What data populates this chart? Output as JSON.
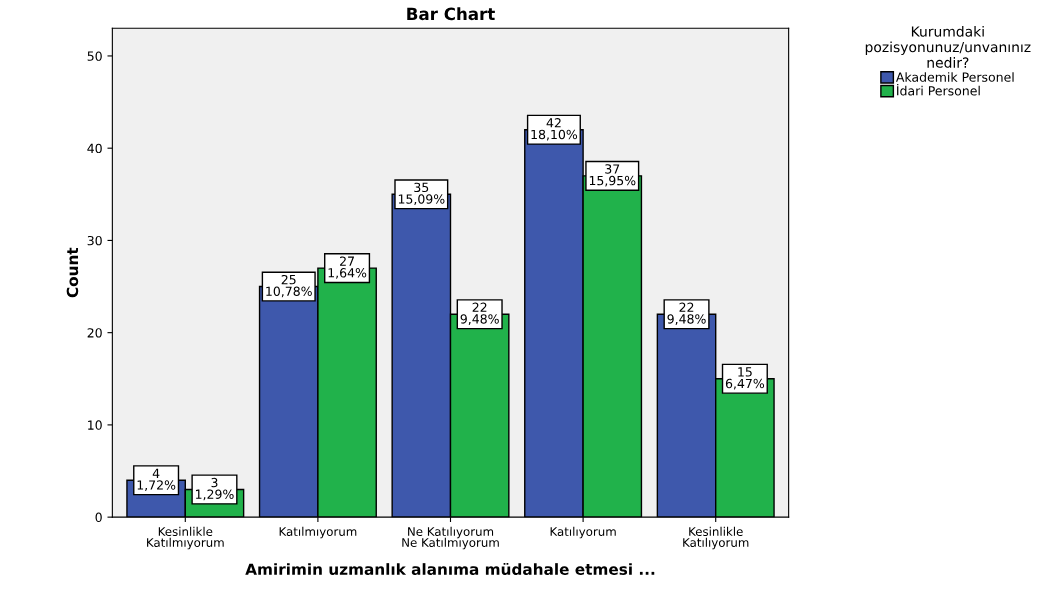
{
  "chart_data": {
    "type": "bar",
    "title": "Bar Chart",
    "xlabel": "Amirimin uzmanlık alanıma müdahale etmesi ...",
    "ylabel": "Count",
    "legend_title": "Kurumdaki\npozisyonunuz/unvanınız\nnedir?",
    "categories": [
      "Kesinlikle\nKatılmıyorum",
      "Katılmıyorum",
      "Ne Katılıyorum\nNe Katılmıyorum",
      "Katılıyorum",
      "Kesinlikle\nKatılıyorum"
    ],
    "series": [
      {
        "name": "Akademik Personel",
        "color": "#3e58ac",
        "values": [
          4,
          25,
          35,
          42,
          22
        ],
        "value_labels": [
          "4\n1,72%",
          "25\n10,78%",
          "35\n15,09%",
          "42\n18,10%",
          "22\n9,48%"
        ]
      },
      {
        "name": "İdari Personel",
        "color": "#21b24b",
        "values": [
          3,
          27,
          22,
          37,
          15
        ],
        "value_labels": [
          "3\n1,29%",
          "27\n1,64%",
          "22\n9,48%",
          "37\n15,95%",
          "15\n6,47%"
        ]
      }
    ],
    "ylim": [
      0,
      53
    ],
    "yticks": [
      0,
      10,
      20,
      30,
      40,
      50
    ],
    "grid": false,
    "legend": "top right"
  }
}
